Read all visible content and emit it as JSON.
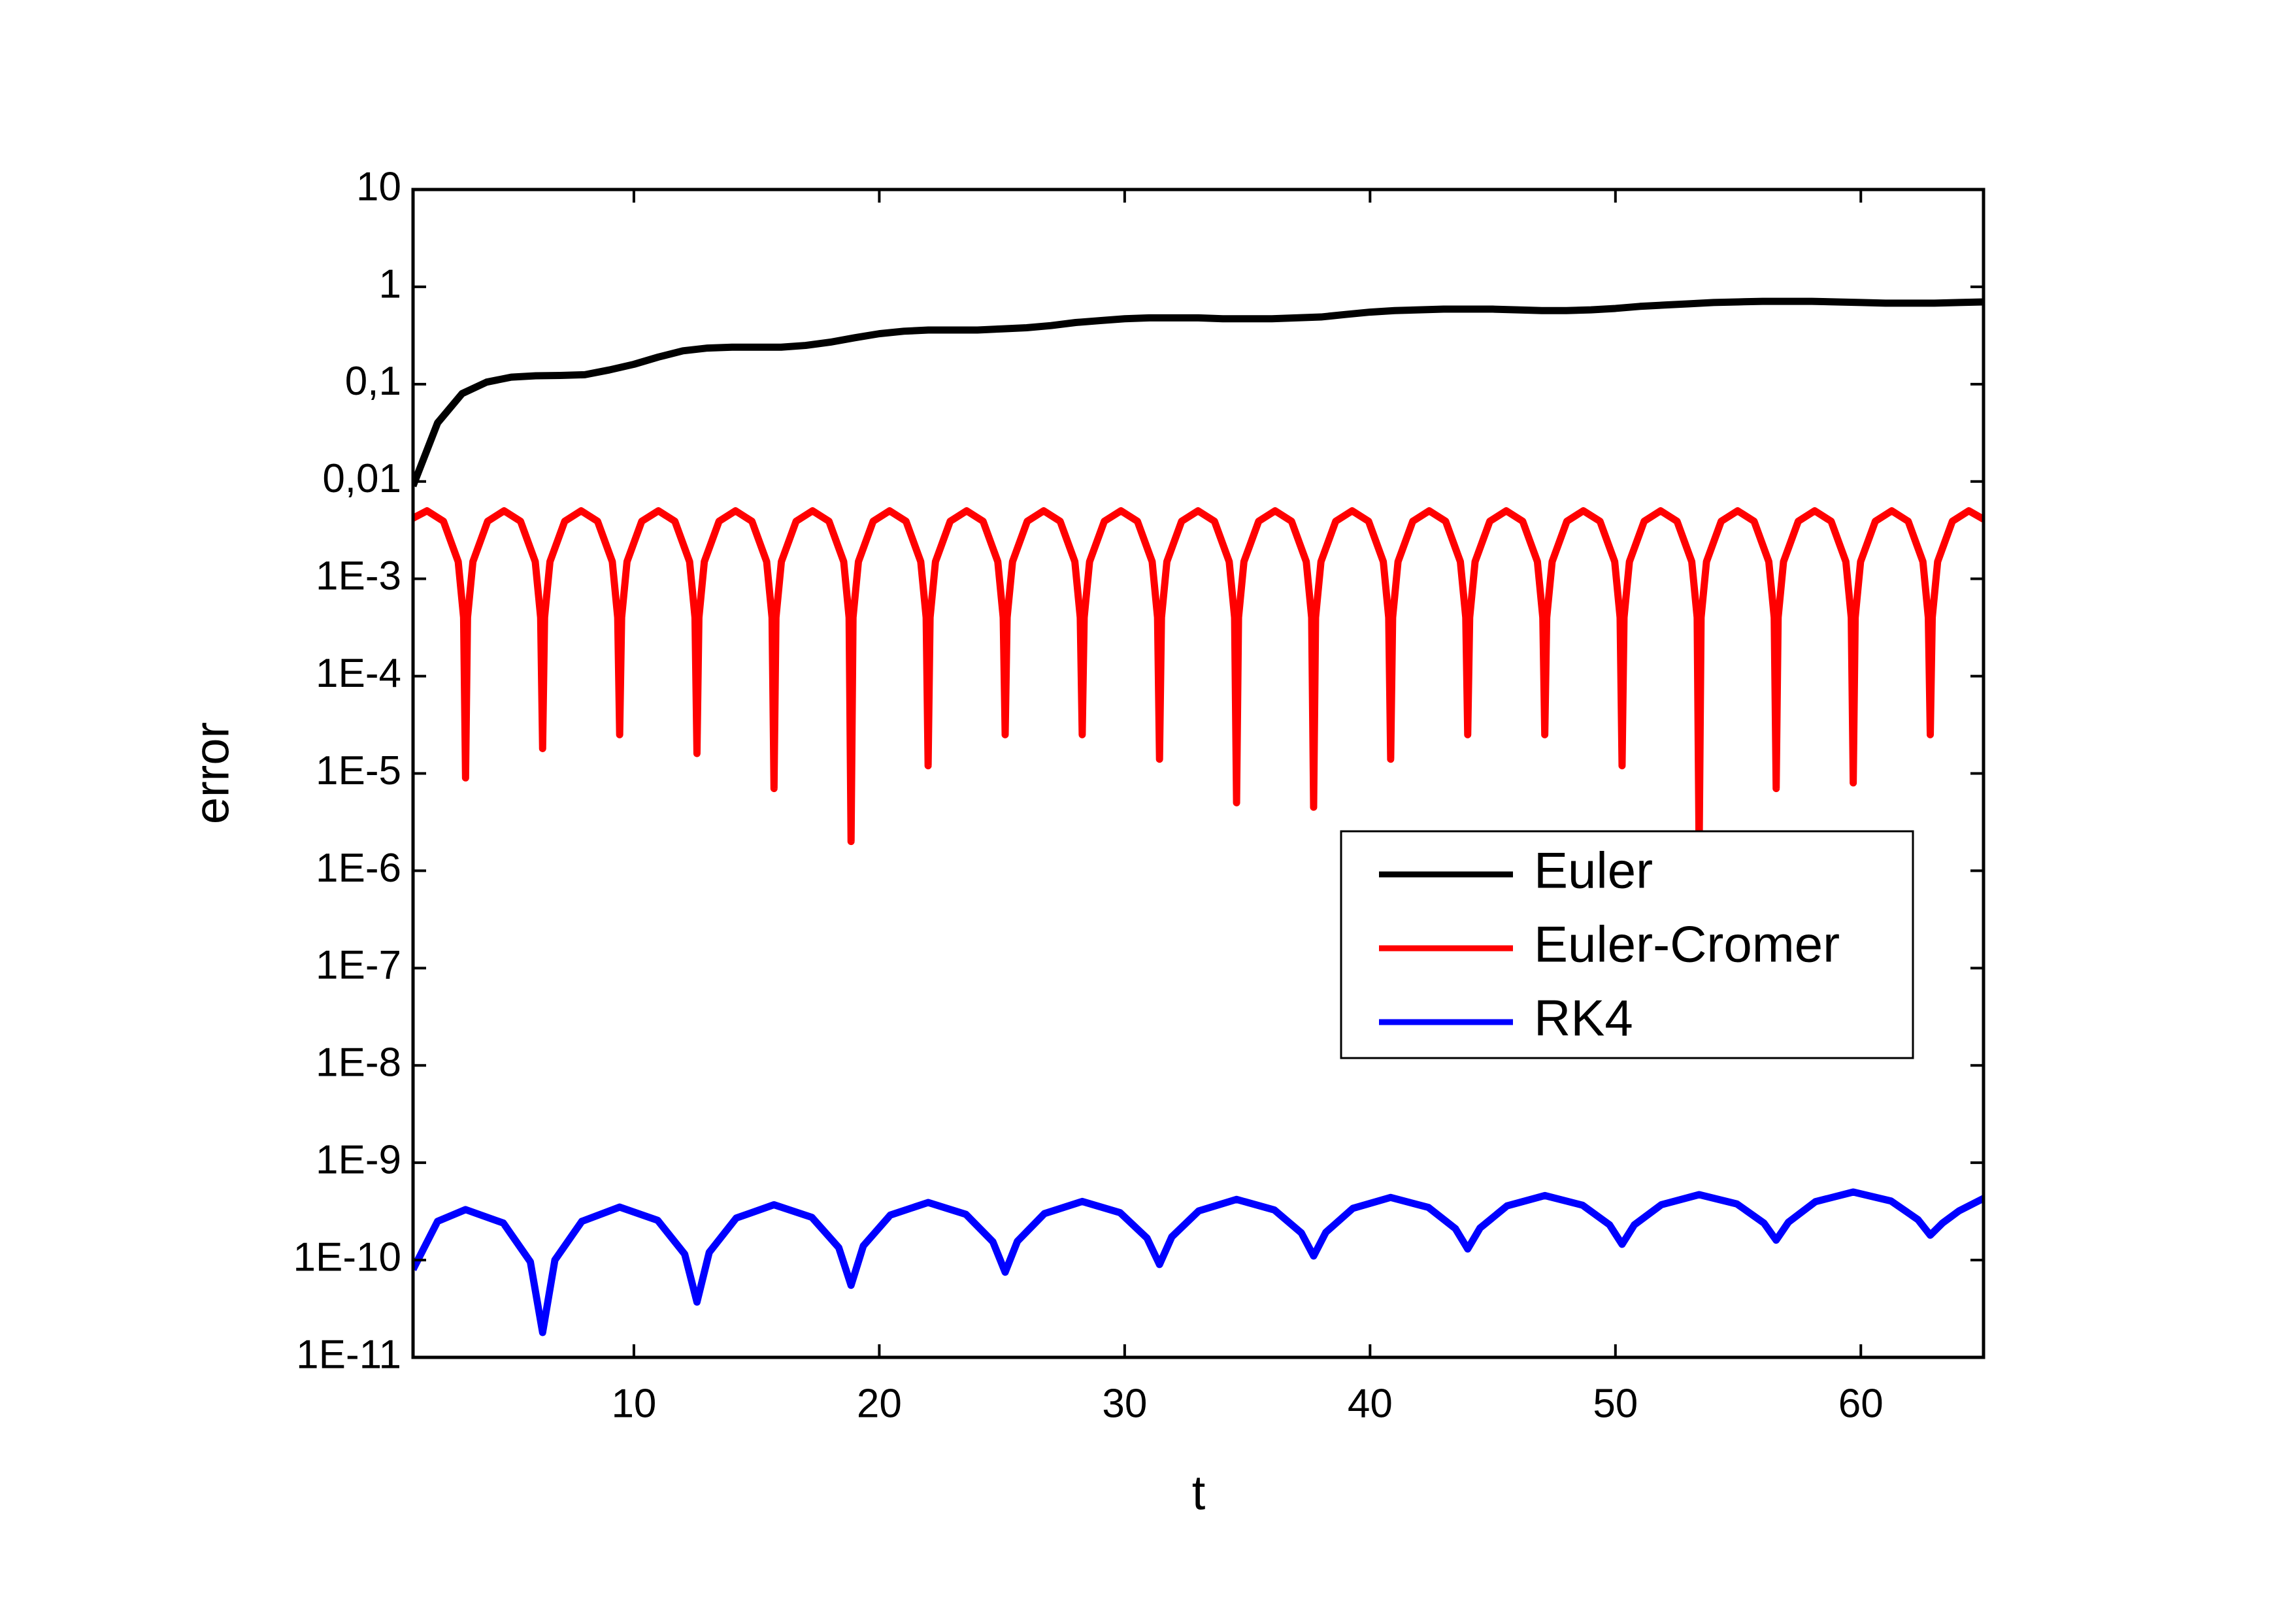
{
  "chart_data": {
    "type": "line",
    "xlabel": "t",
    "ylabel": "error",
    "xlim": [
      1,
      65
    ],
    "xticks": [
      10,
      20,
      30,
      40,
      50,
      60
    ],
    "ylim": [
      1e-11,
      10
    ],
    "yscale": "log",
    "yticks": [
      10,
      1,
      {
        "value": 0.1,
        "label": "0,1"
      },
      {
        "value": 0.01,
        "label": "0,01"
      },
      {
        "value": 0.001,
        "label": "1E-3"
      },
      {
        "value": 0.0001,
        "label": "1E-4"
      },
      {
        "value": 1e-05,
        "label": "1E-5"
      },
      {
        "value": 1e-06,
        "label": "1E-6"
      },
      {
        "value": 1e-07,
        "label": "1E-7"
      },
      {
        "value": 1e-08,
        "label": "1E-8"
      },
      {
        "value": 1e-09,
        "label": "1E-9"
      },
      {
        "value": 1e-10,
        "label": "1E-10"
      },
      {
        "value": 1e-11,
        "label": "1E-11"
      }
    ],
    "legend_position": "right",
    "series": [
      {
        "name": "Euler",
        "color": "#000000",
        "x": [
          1,
          2,
          3,
          4,
          5,
          6,
          7,
          8,
          9,
          10,
          11,
          12,
          13,
          14,
          15,
          16,
          17,
          18,
          19,
          20,
          21,
          22,
          23,
          24,
          25,
          26,
          27,
          28,
          29,
          30,
          31,
          32,
          33,
          34,
          35,
          36,
          37,
          38,
          39,
          40,
          41,
          42,
          43,
          44,
          45,
          46,
          47,
          48,
          49,
          50,
          51,
          52,
          53,
          54,
          55,
          56,
          57,
          58,
          59,
          60,
          61,
          62,
          63,
          64,
          65
        ],
        "values": [
          0.009,
          0.04,
          0.08,
          0.105,
          0.118,
          0.122,
          0.123,
          0.125,
          0.14,
          0.16,
          0.19,
          0.22,
          0.235,
          0.24,
          0.24,
          0.24,
          0.25,
          0.27,
          0.3,
          0.33,
          0.35,
          0.36,
          0.36,
          0.36,
          0.37,
          0.38,
          0.4,
          0.43,
          0.45,
          0.47,
          0.48,
          0.48,
          0.48,
          0.47,
          0.47,
          0.47,
          0.48,
          0.49,
          0.52,
          0.55,
          0.57,
          0.58,
          0.59,
          0.59,
          0.59,
          0.58,
          0.57,
          0.57,
          0.58,
          0.6,
          0.63,
          0.65,
          0.67,
          0.69,
          0.7,
          0.71,
          0.71,
          0.71,
          0.7,
          0.69,
          0.68,
          0.68,
          0.68,
          0.69,
          0.7
        ]
      },
      {
        "name": "Euler-Cromer",
        "color": "#ff0000",
        "x": [
          1,
          1.57,
          2.24,
          2.84,
          3.06,
          3.14,
          3.22,
          3.44,
          4.04,
          4.71,
          5.38,
          5.98,
          6.2,
          6.28,
          6.36,
          6.58,
          7.18,
          7.85,
          8.52,
          9.12,
          9.34,
          9.42,
          9.5,
          9.72,
          10.32,
          11.0,
          11.67,
          12.27,
          12.49,
          12.57,
          12.65,
          12.87,
          13.47,
          14.14,
          14.81,
          15.41,
          15.63,
          15.71,
          15.79,
          16.01,
          16.61,
          17.28,
          17.95,
          18.55,
          18.77,
          18.85,
          18.93,
          19.15,
          19.75,
          20.42,
          21.09,
          21.69,
          21.91,
          21.99,
          22.07,
          22.29,
          22.89,
          23.56,
          24.23,
          24.83,
          25.05,
          25.13,
          25.21,
          25.43,
          26.03,
          26.7,
          27.37,
          27.97,
          28.19,
          28.27,
          28.35,
          28.57,
          29.17,
          29.85,
          30.52,
          31.12,
          31.34,
          31.42,
          31.5,
          31.72,
          32.32,
          32.99,
          33.66,
          34.26,
          34.48,
          34.56,
          34.64,
          34.86,
          35.46,
          36.13,
          36.8,
          37.4,
          37.62,
          37.7,
          37.78,
          38.0,
          38.6,
          39.27,
          39.94,
          40.54,
          40.76,
          40.84,
          40.92,
          41.14,
          41.74,
          42.41,
          43.08,
          43.68,
          43.9,
          43.98,
          44.06,
          44.28,
          44.88,
          45.55,
          46.22,
          46.82,
          47.04,
          47.12,
          47.2,
          47.42,
          48.02,
          48.69,
          49.37,
          49.97,
          50.19,
          50.27,
          50.35,
          50.57,
          51.17,
          51.84,
          52.51,
          53.11,
          53.33,
          53.41,
          53.49,
          53.71,
          54.31,
          54.98,
          55.65,
          56.25,
          56.47,
          56.55,
          56.63,
          56.85,
          57.45,
          58.12,
          58.79,
          59.39,
          59.61,
          59.69,
          59.77,
          59.99,
          60.59,
          61.26,
          61.93,
          62.53,
          62.75,
          62.83,
          62.91,
          63.13,
          63.73,
          64.4,
          65
        ],
        "values": [
          0.0042,
          0.005,
          0.0039,
          0.0015,
          0.0004,
          9e-06,
          0.0004,
          0.0015,
          0.0039,
          0.005,
          0.0039,
          0.0015,
          0.0004,
          1.8e-05,
          0.0004,
          0.0015,
          0.0039,
          0.005,
          0.0039,
          0.0015,
          0.0004,
          2.5e-05,
          0.0004,
          0.0015,
          0.0039,
          0.005,
          0.0039,
          0.0015,
          0.0004,
          1.6e-05,
          0.0004,
          0.0015,
          0.0039,
          0.005,
          0.0039,
          0.0015,
          0.0004,
          7e-06,
          0.0004,
          0.0015,
          0.0039,
          0.005,
          0.0039,
          0.0015,
          0.0004,
          2e-06,
          0.0004,
          0.0015,
          0.0039,
          0.005,
          0.0039,
          0.0015,
          0.0004,
          1.2e-05,
          0.0004,
          0.0015,
          0.0039,
          0.005,
          0.0039,
          0.0015,
          0.0004,
          2.5e-05,
          0.0004,
          0.0015,
          0.0039,
          0.005,
          0.0039,
          0.0015,
          0.0004,
          2.5e-05,
          0.0004,
          0.0015,
          0.0039,
          0.005,
          0.0039,
          0.0015,
          0.0004,
          1.4e-05,
          0.0004,
          0.0015,
          0.0039,
          0.005,
          0.0039,
          0.0015,
          0.0004,
          5e-06,
          0.0004,
          0.0015,
          0.0039,
          0.005,
          0.0039,
          0.0015,
          0.0004,
          4.5e-06,
          0.0004,
          0.0015,
          0.0039,
          0.005,
          0.0039,
          0.0015,
          0.0004,
          1.4e-05,
          0.0004,
          0.0015,
          0.0039,
          0.005,
          0.0039,
          0.0015,
          0.0004,
          2.5e-05,
          0.0004,
          0.0015,
          0.0039,
          0.005,
          0.0039,
          0.0015,
          0.0004,
          2.5e-05,
          0.0004,
          0.0015,
          0.0039,
          0.005,
          0.0039,
          0.0015,
          0.0004,
          1.2e-05,
          0.0004,
          0.0015,
          0.0039,
          0.005,
          0.0039,
          0.0015,
          0.0004,
          1.5e-06,
          0.0004,
          0.0015,
          0.0039,
          0.005,
          0.0039,
          0.0015,
          0.0004,
          7e-06,
          0.0004,
          0.0015,
          0.0039,
          0.005,
          0.0039,
          0.0015,
          0.0004,
          8e-06,
          0.0004,
          0.0015,
          0.0039,
          0.005,
          0.0039,
          0.0015,
          0.0004,
          2.5e-05,
          0.0004,
          0.0015,
          0.0039,
          0.005,
          0.0041
        ]
      },
      {
        "name": "RK4",
        "color": "#0000ff",
        "x": [
          1,
          2,
          3.14,
          4.68,
          5.78,
          6.28,
          6.78,
          7.88,
          9.42,
          10.97,
          12.07,
          12.57,
          13.07,
          14.17,
          15.71,
          17.25,
          18.35,
          18.85,
          19.35,
          20.45,
          21.99,
          23.53,
          24.63,
          25.13,
          25.63,
          26.73,
          28.27,
          29.81,
          30.91,
          31.42,
          31.92,
          33.02,
          34.56,
          36.1,
          37.2,
          37.7,
          38.2,
          39.3,
          40.84,
          42.38,
          43.48,
          43.98,
          44.48,
          45.58,
          47.12,
          48.66,
          49.76,
          50.27,
          50.77,
          51.87,
          53.41,
          54.95,
          56.05,
          56.55,
          57.05,
          58.15,
          59.69,
          61.23,
          62.33,
          62.83,
          63.33,
          64.0,
          65
        ],
        "values": [
          8e-11,
          2.5e-10,
          3.3e-10,
          2.4e-10,
          9.6e-11,
          1.8e-11,
          1e-10,
          2.5e-10,
          3.5e-10,
          2.56e-10,
          1.15e-10,
          3.7e-11,
          1.2e-10,
          2.7e-10,
          3.7e-10,
          2.75e-10,
          1.34e-10,
          5.5e-11,
          1.4e-10,
          2.9e-10,
          3.9e-10,
          2.95e-10,
          1.54e-10,
          7.5e-11,
          1.56e-10,
          3e-10,
          4e-10,
          3.07e-10,
          1.68e-10,
          9e-11,
          1.73e-10,
          3.2e-10,
          4.2e-10,
          3.27e-10,
          1.9e-10,
          1.1e-10,
          1.93e-10,
          3.4e-10,
          4.4e-10,
          3.47e-10,
          2.1e-10,
          1.3e-10,
          2.13e-10,
          3.6e-10,
          4.6e-10,
          3.66e-10,
          2.3e-10,
          1.45e-10,
          2.3e-10,
          3.7e-10,
          4.7e-10,
          3.77e-10,
          2.4e-10,
          1.6e-10,
          2.45e-10,
          3.98e-10,
          5e-10,
          4.04e-10,
          2.6e-10,
          1.8e-10,
          2.4e-10,
          3.2e-10,
          4.3e-10
        ]
      }
    ]
  }
}
